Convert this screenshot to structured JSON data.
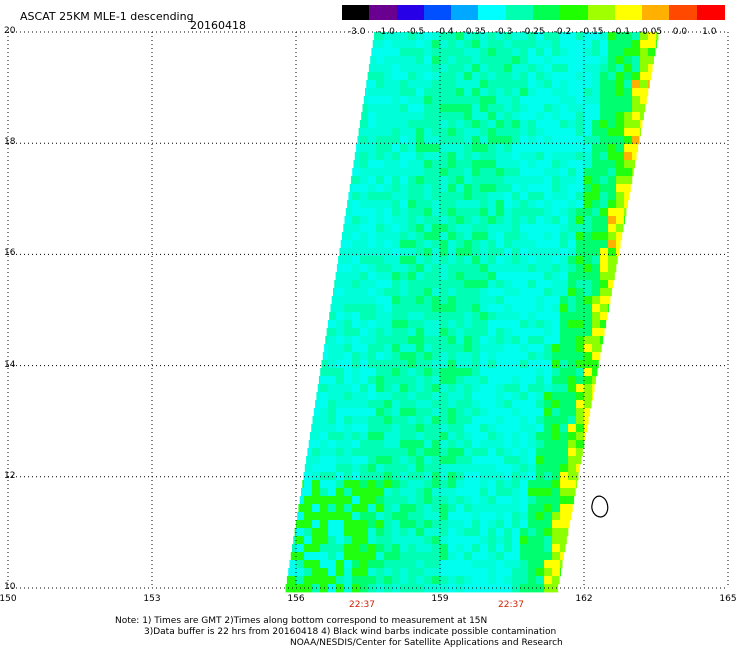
{
  "header": {
    "title": "ASCAT 25KM MLE-1 descending",
    "date": "20160418"
  },
  "colorbar": {
    "labels": [
      "-3.0",
      "-1.0",
      "-0.5",
      "-0.4",
      "-0.35",
      "-0.3",
      "-0.25",
      "-0.2",
      "-0.15",
      "-0.1",
      "-0.05",
      "0.0",
      "1.0"
    ],
    "colors": [
      "#000000",
      "#6a0090",
      "#2800e8",
      "#0050ff",
      "#00a8ff",
      "#00ffff",
      "#00ffb0",
      "#00ff50",
      "#20ff00",
      "#a0ff00",
      "#ffff00",
      "#ffb000",
      "#ff4800",
      "#ff0000"
    ]
  },
  "map": {
    "lat_labels": [
      "20",
      "18",
      "16",
      "14",
      "12",
      "10"
    ],
    "lon_labels": [
      "150",
      "153",
      "156",
      "159",
      "162",
      "165"
    ],
    "time_labels": [
      "22:37",
      "22:37"
    ],
    "swath_colors": {
      "cyan": "#00ffd8",
      "aqua": "#00ffee",
      "teal": "#00ffb4",
      "green": "#00ff70",
      "bright_green": "#20ff10",
      "lime": "#8cff00",
      "yellow": "#ffff00",
      "orange": "#ffb000"
    }
  },
  "notes": {
    "line1": "Note: 1) Times are GMT 2)Times along bottom correspond to measurement at 15N",
    "line2": "3)Data buffer is 22 hrs from 20160418 4) Black wind barbs indicate possible contamination",
    "line3": "NOAA/NESDIS/Center for Satellite Applications and Research"
  }
}
